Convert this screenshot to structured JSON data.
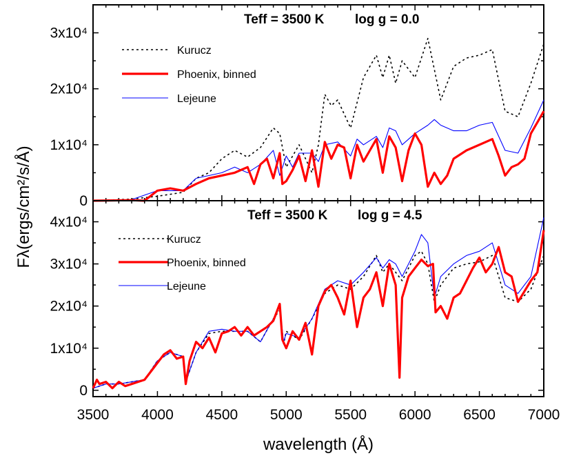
{
  "chart_data": {
    "type": "line",
    "xlabel": "wavelength (Å)",
    "ylabel": "Fλ(ergs/cm²/s/Å)",
    "xlim": [
      3500,
      7000
    ],
    "x_ticks": [
      "3500",
      "4000",
      "4500",
      "5000",
      "5500",
      "6000",
      "6500",
      "7000"
    ],
    "panels": [
      {
        "title_teff": "Teff = 3500 K",
        "title_logg": "log g = 0.0",
        "ylim": [
          0,
          35000
        ],
        "y_ticks": [
          {
            "value": 0,
            "label": "0"
          },
          {
            "value": 10000,
            "label": "1x10⁴"
          },
          {
            "value": 20000,
            "label": "2x10⁴"
          },
          {
            "value": 30000,
            "label": "3x10⁴"
          }
        ],
        "legend": [
          "Kurucz",
          "Phoenix, binned",
          "Lejeune"
        ],
        "series": [
          {
            "name": "Kurucz",
            "color": "#000000",
            "style": "dotted",
            "x": [
              3500,
              3800,
              4000,
              4200,
              4300,
              4400,
              4500,
              4600,
              4700,
              4800,
              4900,
              4950,
              5000,
              5100,
              5200,
              5250,
              5300,
              5350,
              5400,
              5500,
              5600,
              5700,
              5750,
              5800,
              5850,
              5900,
              6000,
              6100,
              6200,
              6300,
              6400,
              6500,
              6600,
              6700,
              6800,
              6900,
              7000
            ],
            "y": [
              0,
              300,
              800,
              1500,
              4000,
              5000,
              7500,
              9000,
              7800,
              9500,
              13000,
              12000,
              6000,
              10000,
              5000,
              10000,
              19000,
              17000,
              18000,
              13000,
              22000,
              26000,
              22000,
              26000,
              21000,
              25000,
              22000,
              29000,
              18000,
              24000,
              25500,
              26000,
              27000,
              16000,
              15000,
              21000,
              28000
            ]
          },
          {
            "name": "Phoenix, binned",
            "color": "#ff0000",
            "style": "solid",
            "x": [
              3500,
              3800,
              3900,
              4000,
              4100,
              4200,
              4300,
              4400,
              4500,
              4600,
              4700,
              4750,
              4800,
              4850,
              4900,
              4950,
              4970,
              5000,
              5050,
              5100,
              5150,
              5200,
              5250,
              5300,
              5350,
              5400,
              5450,
              5500,
              5550,
              5600,
              5650,
              5700,
              5750,
              5800,
              5850,
              5900,
              5950,
              6000,
              6050,
              6100,
              6150,
              6200,
              6250,
              6300,
              6400,
              6500,
              6600,
              6650,
              6700,
              6750,
              6800,
              6850,
              6900,
              6950,
              7000
            ],
            "y": [
              0,
              100,
              0,
              1800,
              2200,
              1800,
              3000,
              4000,
              4500,
              5000,
              6000,
              3000,
              6500,
              7500,
              4000,
              8500,
              3000,
              3500,
              5500,
              8000,
              3500,
              9000,
              2500,
              10500,
              7500,
              10000,
              9500,
              4000,
              10000,
              7000,
              9000,
              11000,
              5000,
              11500,
              9500,
              3500,
              9000,
              12000,
              10000,
              2500,
              5000,
              3000,
              4500,
              7500,
              9000,
              10000,
              11000,
              8000,
              4500,
              6000,
              6500,
              7500,
              12000,
              14000,
              16000
            ]
          },
          {
            "name": "Lejeune",
            "color": "#0000ff",
            "style": "solid",
            "x": [
              3500,
              3800,
              4000,
              4200,
              4300,
              4400,
              4500,
              4600,
              4700,
              4800,
              4900,
              4950,
              5000,
              5050,
              5100,
              5200,
              5250,
              5300,
              5400,
              5500,
              5550,
              5600,
              5700,
              5750,
              5800,
              5850,
              5900,
              6000,
              6100,
              6150,
              6200,
              6300,
              6400,
              6500,
              6600,
              6700,
              6800,
              6900,
              7000
            ],
            "y": [
              0,
              200,
              1800,
              1800,
              4000,
              4500,
              5000,
              6000,
              5000,
              6500,
              9000,
              4500,
              8000,
              6000,
              8500,
              8500,
              7000,
              10000,
              10500,
              8000,
              11000,
              10000,
              11500,
              9500,
              13000,
              12500,
              10000,
              12000,
              13500,
              14500,
              13500,
              12500,
              12500,
              13500,
              14000,
              9000,
              8500,
              13000,
              18000
            ]
          }
        ]
      },
      {
        "title_teff": "Teff = 3500 K",
        "title_logg": "log g = 4.5",
        "ylim": [
          -1500,
          45000
        ],
        "y_ticks": [
          {
            "value": 0,
            "label": "0"
          },
          {
            "value": 10000,
            "label": "1x10⁴"
          },
          {
            "value": 20000,
            "label": "2x10⁴"
          },
          {
            "value": 30000,
            "label": "3x10⁴"
          },
          {
            "value": 40000,
            "label": "4x10⁴"
          }
        ],
        "legend": [
          "Kurucz",
          "Phoenix, binned",
          "Lejeune"
        ],
        "series": [
          {
            "name": "Kurucz",
            "color": "#000000",
            "style": "dotted",
            "x": [
              3500,
              3600,
              3700,
              3800,
              3900,
              4000,
              4100,
              4200,
              4220,
              4300,
              4400,
              4500,
              4600,
              4700,
              4800,
              4900,
              4950,
              4980,
              5000,
              5100,
              5200,
              5300,
              5400,
              5500,
              5600,
              5700,
              5750,
              5800,
              5850,
              5900,
              6000,
              6050,
              6100,
              6150,
              6200,
              6300,
              6400,
              6500,
              6600,
              6700,
              6800,
              6900,
              7000
            ],
            "y": [
              500,
              1500,
              1500,
              2000,
              2500,
              7000,
              9000,
              8000,
              2000,
              9000,
              13500,
              14000,
              14000,
              14000,
              11500,
              17000,
              19000,
              11000,
              14000,
              12000,
              17000,
              23000,
              25000,
              24000,
              27000,
              32000,
              28000,
              30000,
              28000,
              26000,
              32000,
              33000,
              30000,
              21000,
              25000,
              29000,
              30000,
              30500,
              32000,
              22000,
              21000,
              24000,
              32000
            ]
          },
          {
            "name": "Phoenix, binned",
            "color": "#ff0000",
            "style": "solid",
            "x": [
              3500,
              3530,
              3550,
              3600,
              3650,
              3700,
              3750,
              3800,
              3850,
              3900,
              3950,
              4000,
              4050,
              4100,
              4150,
              4200,
              4220,
              4250,
              4300,
              4350,
              4400,
              4450,
              4500,
              4550,
              4600,
              4650,
              4700,
              4750,
              4800,
              4850,
              4900,
              4950,
              4970,
              5000,
              5050,
              5100,
              5150,
              5200,
              5250,
              5300,
              5350,
              5400,
              5450,
              5500,
              5550,
              5600,
              5650,
              5700,
              5750,
              5800,
              5850,
              5880,
              5900,
              5950,
              6000,
              6050,
              6100,
              6140,
              6160,
              6200,
              6250,
              6300,
              6350,
              6400,
              6450,
              6500,
              6550,
              6600,
              6650,
              6700,
              6750,
              6800,
              6850,
              6900,
              6950,
              7000
            ],
            "y": [
              500,
              2500,
              1500,
              2000,
              500,
              2000,
              1000,
              1500,
              2000,
              2500,
              4500,
              6500,
              8500,
              9500,
              7500,
              8000,
              1500,
              7000,
              11500,
              10000,
              12500,
              9000,
              13500,
              14000,
              15000,
              13000,
              15000,
              13000,
              14000,
              15000,
              16500,
              20500,
              12000,
              10000,
              14000,
              12000,
              16000,
              8500,
              20000,
              23500,
              25000,
              22000,
              18000,
              26000,
              15000,
              22000,
              24000,
              28000,
              20000,
              30000,
              25000,
              3000,
              22000,
              27000,
              29000,
              31000,
              29500,
              30000,
              18500,
              20000,
              17000,
              22000,
              23000,
              26000,
              29000,
              31500,
              28000,
              30000,
              34000,
              28000,
              27000,
              21000,
              23500,
              26000,
              28000,
              38000
            ]
          },
          {
            "name": "Lejeune",
            "color": "#0000ff",
            "style": "solid",
            "x": [
              3500,
              3600,
              3700,
              3800,
              3900,
              4000,
              4100,
              4200,
              4220,
              4300,
              4400,
              4500,
              4600,
              4700,
              4800,
              4900,
              4950,
              4980,
              5000,
              5100,
              5200,
              5300,
              5400,
              5500,
              5600,
              5700,
              5750,
              5800,
              5850,
              5900,
              6000,
              6050,
              6100,
              6150,
              6200,
              6300,
              6400,
              6500,
              6600,
              6700,
              6800,
              6900,
              7000
            ],
            "y": [
              500,
              1500,
              1500,
              2000,
              2500,
              7000,
              9000,
              8000,
              2000,
              9000,
              14000,
              14500,
              14000,
              14000,
              11500,
              17000,
              20000,
              11500,
              13500,
              12500,
              17000,
              24000,
              26000,
              25000,
              28000,
              31500,
              29000,
              31000,
              30000,
              27000,
              33000,
              37000,
              35000,
              22000,
              27000,
              30000,
              32000,
              33000,
              35000,
              25000,
              23000,
              27000,
              41000
            ]
          }
        ]
      }
    ]
  }
}
